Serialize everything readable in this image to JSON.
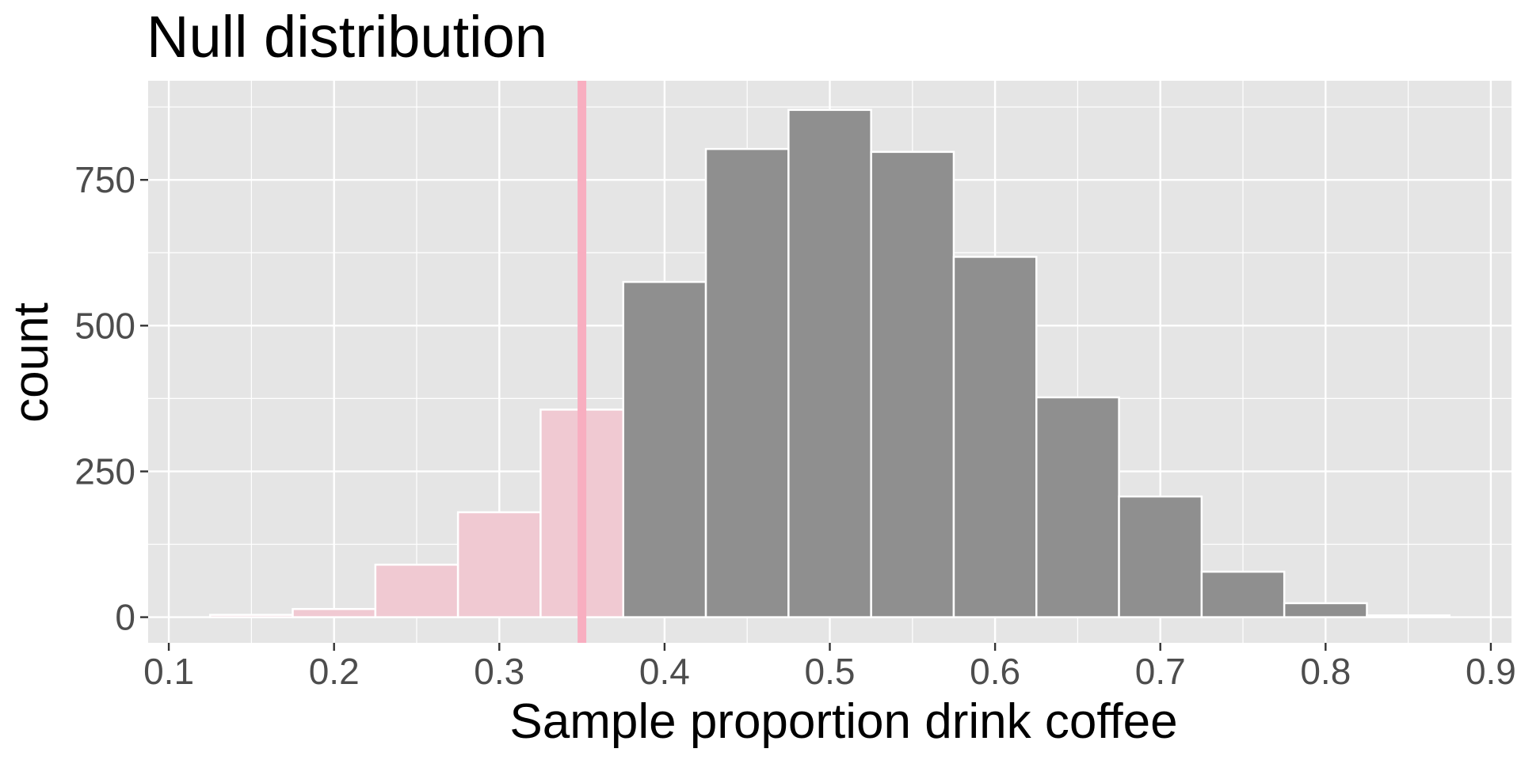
{
  "chart_data": {
    "type": "bar",
    "title": "Null distribution",
    "xlabel": "Sample proportion drink coffee",
    "ylabel": "count",
    "x_ticks": [
      "0.1",
      "0.2",
      "0.3",
      "0.4",
      "0.5",
      "0.6",
      "0.7",
      "0.8",
      "0.9"
    ],
    "y_ticks": [
      "0",
      "250",
      "500",
      "750"
    ],
    "xlim": [
      0.0875,
      0.9125
    ],
    "ylim": [
      -44,
      920
    ],
    "grid": true,
    "bin_width": 0.05,
    "bins": [
      {
        "center": 0.15,
        "count": 4,
        "shaded": true
      },
      {
        "center": 0.2,
        "count": 14,
        "shaded": true
      },
      {
        "center": 0.25,
        "count": 90,
        "shaded": true
      },
      {
        "center": 0.3,
        "count": 180,
        "shaded": true
      },
      {
        "center": 0.35,
        "count": 356,
        "shaded": true
      },
      {
        "center": 0.4,
        "count": 575,
        "shaded": false
      },
      {
        "center": 0.45,
        "count": 803,
        "shaded": false
      },
      {
        "center": 0.5,
        "count": 870,
        "shaded": false
      },
      {
        "center": 0.55,
        "count": 798,
        "shaded": false
      },
      {
        "center": 0.6,
        "count": 618,
        "shaded": false
      },
      {
        "center": 0.65,
        "count": 377,
        "shaded": false
      },
      {
        "center": 0.7,
        "count": 207,
        "shaded": false
      },
      {
        "center": 0.75,
        "count": 78,
        "shaded": false
      },
      {
        "center": 0.8,
        "count": 24,
        "shaded": false
      },
      {
        "center": 0.85,
        "count": 3,
        "shaded": false
      }
    ],
    "observed_statistic": 0.35,
    "colors": {
      "panel_background": "#e5e5e5",
      "grid_line": "#ffffff",
      "bar_fill": "#8f8f8f",
      "shaded_fill": "#f0c9d2",
      "bar_outline": "#ffffff",
      "observed_line": "#f8aec0"
    }
  }
}
